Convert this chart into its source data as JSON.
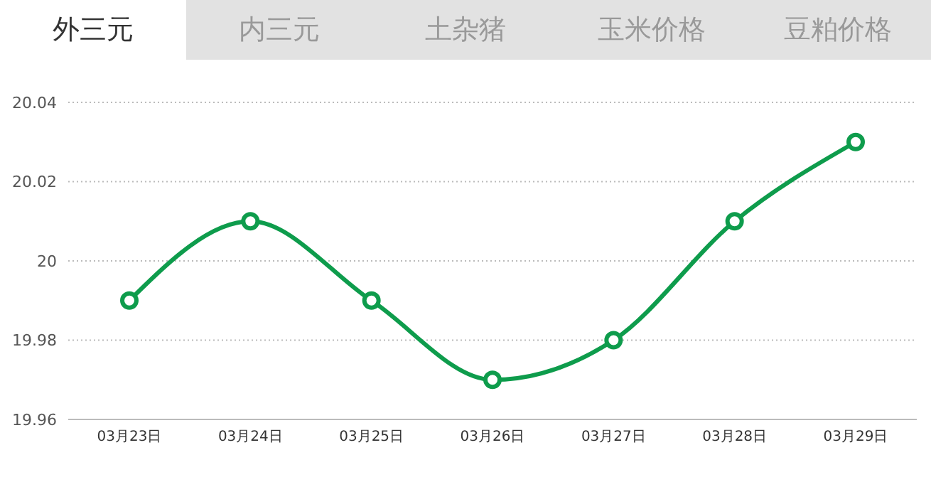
{
  "chart_data": {
    "type": "line",
    "annotations": [
      "外三元",
      "内三元",
      "土杂猪",
      "玉米价格",
      "豆粕价格"
    ],
    "categories": [
      "03月23日",
      "03月24日",
      "03月25日",
      "03月26日",
      "03月27日",
      "03月28日",
      "03月29日"
    ],
    "series": [
      {
        "color": "#0e9c4c",
        "values": [
          19.99,
          20.01,
          19.99,
          19.97,
          19.98,
          20.01,
          20.03
        ]
      }
    ],
    "ylim": [
      19.96,
      20.04
    ],
    "yticks": [
      19.96,
      19.98,
      20,
      20.02,
      20.04
    ],
    "grid": "y",
    "marker": "circle",
    "line_style": "solid"
  }
}
